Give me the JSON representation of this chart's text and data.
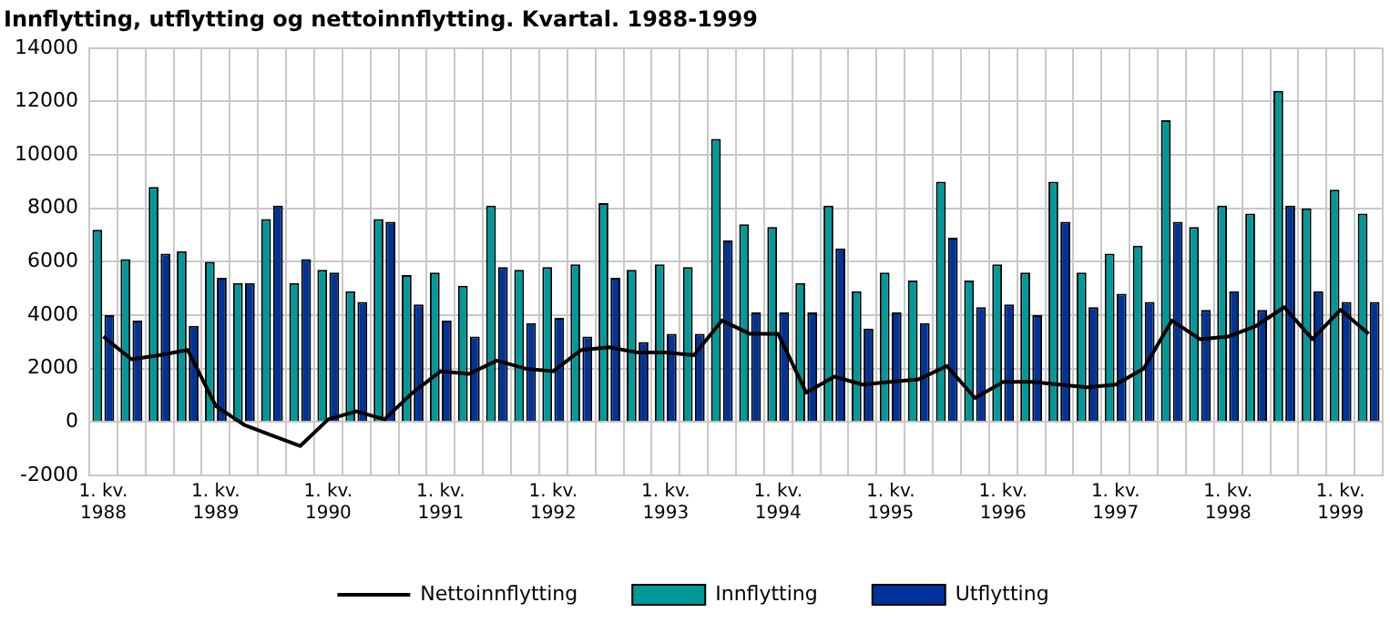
{
  "chart_data": {
    "type": "bar",
    "title": "Innflytting, utflytting og nettoinnflytting. Kvartal. 1988-1999",
    "categories": [
      "1. kv. 1988",
      null,
      null,
      null,
      "1. kv. 1989",
      null,
      null,
      null,
      "1. kv. 1990",
      null,
      null,
      null,
      "1. kv. 1991",
      null,
      null,
      null,
      "1. kv. 1992",
      null,
      null,
      null,
      "1. kv. 1993",
      null,
      null,
      null,
      "1. kv. 1994",
      null,
      null,
      null,
      "1. kv. 1995",
      null,
      null,
      null,
      "1. kv. 1996",
      null,
      null,
      null,
      "1. kv. 1997",
      null,
      null,
      null,
      "1. kv. 1998",
      null,
      null,
      null,
      "1. kv. 1999",
      null
    ],
    "series": [
      {
        "name": "Innflytting",
        "color": "#009999",
        "values": [
          7200,
          6100,
          8800,
          6400,
          6000,
          5200,
          7600,
          5200,
          5700,
          4900,
          7600,
          5500,
          5600,
          5100,
          8100,
          5700,
          5800,
          5900,
          8200,
          5700,
          5900,
          5800,
          10600,
          7400,
          7300,
          5200,
          8100,
          4900,
          5600,
          5300,
          9000,
          5300,
          5900,
          5600,
          9000,
          5600,
          6300,
          6600,
          11300,
          7300,
          8100,
          7800,
          12400,
          8000,
          8700,
          7800
        ]
      },
      {
        "name": "Utflytting",
        "color": "#003399",
        "values": [
          4000,
          3800,
          6300,
          3600,
          5400,
          5200,
          8100,
          6100,
          5600,
          4500,
          7500,
          4400,
          3800,
          3200,
          5800,
          3700,
          3900,
          3200,
          5400,
          3000,
          3300,
          3300,
          6800,
          4100,
          4100,
          4100,
          6500,
          3500,
          4100,
          3700,
          6900,
          4300,
          4400,
          4000,
          7500,
          4300,
          4800,
          4500,
          7500,
          4200,
          4900,
          4200,
          8100,
          4900,
          4500,
          4500
        ]
      },
      {
        "name": "Nettoinnflytting",
        "type": "line",
        "color": "#000000",
        "values": [
          3200,
          2350,
          2500,
          2700,
          600,
          -100,
          -500,
          -900,
          100,
          400,
          100,
          1100,
          1900,
          1800,
          2300,
          2000,
          1900,
          2700,
          2800,
          2600,
          2600,
          2500,
          3800,
          3300,
          3300,
          1100,
          1700,
          1400,
          1500,
          1600,
          2100,
          900,
          1500,
          1500,
          1400,
          1300,
          1400,
          2000,
          3800,
          3100,
          3200,
          3600,
          4300,
          3100,
          4200,
          3300
        ]
      }
    ],
    "ylim": [
      -2000,
      14000
    ],
    "yticks": [
      -2000,
      0,
      2000,
      4000,
      6000,
      8000,
      10000,
      12000,
      14000
    ],
    "grid": true,
    "legend": "bottom",
    "marker": "none"
  }
}
